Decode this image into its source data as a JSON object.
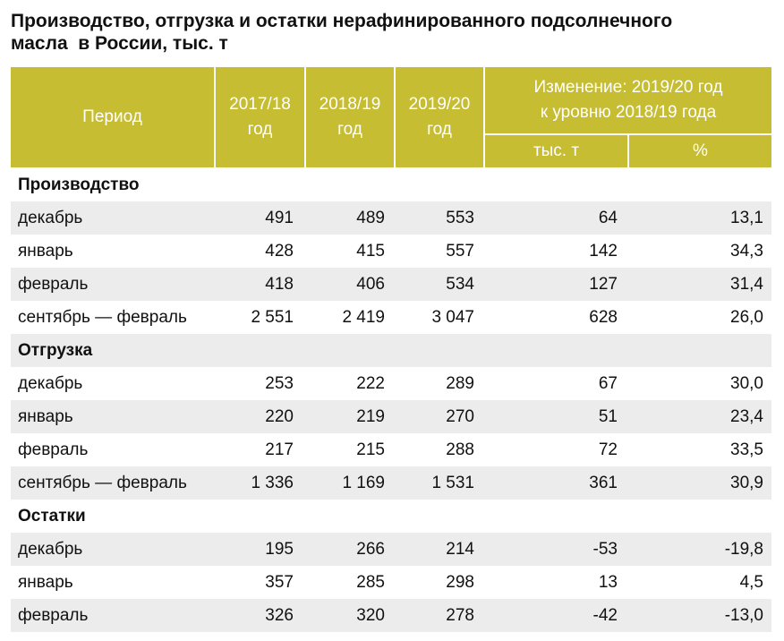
{
  "title": {
    "line1": "Производство, отгрузка и остатки нерафинированного подсолнечного",
    "line2": "масла  в России, тыс. т"
  },
  "colors": {
    "header_bg": "#c6bd33",
    "header_text": "#ffffff",
    "stripe": "#ececec",
    "text": "#111111"
  },
  "table": {
    "headers": {
      "period": "Период",
      "y2017_18": "2017/18\nгод",
      "y2018_19": "2018/19\nгод",
      "y2019_20": "2019/20\nгод",
      "change": "Изменение: 2019/20 год\nк уровню 2018/19 года",
      "change_abs": "тыс. т",
      "change_pct": "%"
    },
    "sections": [
      {
        "name": "Производство",
        "rows": [
          {
            "period": "декабрь",
            "y2017_18": "491",
            "y2018_19": "489",
            "y2019_20": "553",
            "change_abs": "64",
            "change_pct": "13,1"
          },
          {
            "period": "январь",
            "y2017_18": "428",
            "y2018_19": "415",
            "y2019_20": "557",
            "change_abs": "142",
            "change_pct": "34,3"
          },
          {
            "period": "февраль",
            "y2017_18": "418",
            "y2018_19": "406",
            "y2019_20": "534",
            "change_abs": "127",
            "change_pct": "31,4"
          },
          {
            "period": "сентябрь — февраль",
            "y2017_18": "2 551",
            "y2018_19": "2 419",
            "y2019_20": "3 047",
            "change_abs": "628",
            "change_pct": "26,0"
          }
        ]
      },
      {
        "name": "Отгрузка",
        "rows": [
          {
            "period": "декабрь",
            "y2017_18": "253",
            "y2018_19": "222",
            "y2019_20": "289",
            "change_abs": "67",
            "change_pct": "30,0"
          },
          {
            "period": "январь",
            "y2017_18": "220",
            "y2018_19": "219",
            "y2019_20": "270",
            "change_abs": "51",
            "change_pct": "23,4"
          },
          {
            "period": "февраль",
            "y2017_18": "217",
            "y2018_19": "215",
            "y2019_20": "288",
            "change_abs": "72",
            "change_pct": "33,5"
          },
          {
            "period": "сентябрь — февраль",
            "y2017_18": "1 336",
            "y2018_19": "1 169",
            "y2019_20": "1 531",
            "change_abs": "361",
            "change_pct": "30,9"
          }
        ]
      },
      {
        "name": "Остатки",
        "rows": [
          {
            "period": "декабрь",
            "y2017_18": "195",
            "y2018_19": "266",
            "y2019_20": "214",
            "change_abs": "-53",
            "change_pct": "-19,8"
          },
          {
            "period": "январь",
            "y2017_18": "357",
            "y2018_19": "285",
            "y2019_20": "298",
            "change_abs": "13",
            "change_pct": "4,5"
          },
          {
            "period": "февраль",
            "y2017_18": "326",
            "y2018_19": "320",
            "y2019_20": "278",
            "change_abs": "-42",
            "change_pct": "-13,0"
          }
        ]
      }
    ]
  }
}
